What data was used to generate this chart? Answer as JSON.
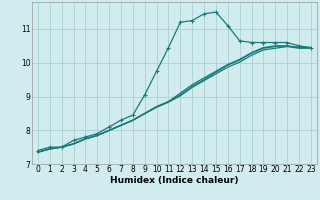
{
  "xlabel": "Humidex (Indice chaleur)",
  "ylabel": "",
  "bg_color": "#d0ecee",
  "grid_color": "#b0d4d4",
  "line_color": "#1a7a7a",
  "xlim": [
    -0.5,
    23.5
  ],
  "ylim": [
    7,
    11.8
  ],
  "xticks": [
    0,
    1,
    2,
    3,
    4,
    5,
    6,
    7,
    8,
    9,
    10,
    11,
    12,
    13,
    14,
    15,
    16,
    17,
    18,
    19,
    20,
    21,
    22,
    23
  ],
  "yticks": [
    7,
    8,
    9,
    10,
    11
  ],
  "series": [
    {
      "x": [
        0,
        1,
        2,
        3,
        4,
        5,
        6,
        7,
        8,
        9,
        10,
        11,
        12,
        13,
        14,
        15,
        16,
        17,
        18,
        19,
        20,
        21,
        22,
        23
      ],
      "y": [
        7.4,
        7.5,
        7.5,
        7.7,
        7.8,
        7.9,
        8.1,
        8.3,
        8.45,
        9.05,
        9.75,
        10.45,
        11.2,
        11.25,
        11.45,
        11.5,
        11.1,
        10.65,
        10.6,
        10.6,
        10.6,
        10.6,
        10.5,
        10.45
      ],
      "marker": "+"
    },
    {
      "x": [
        0,
        1,
        2,
        3,
        4,
        5,
        6,
        7,
        8,
        9,
        10,
        11,
        12,
        13,
        14,
        15,
        16,
        17,
        18,
        19,
        20,
        21,
        22,
        23
      ],
      "y": [
        7.35,
        7.45,
        7.5,
        7.6,
        7.75,
        7.85,
        8.0,
        8.15,
        8.3,
        8.5,
        8.7,
        8.85,
        9.1,
        9.35,
        9.55,
        9.75,
        9.95,
        10.1,
        10.3,
        10.45,
        10.5,
        10.5,
        10.45,
        10.45
      ],
      "marker": null
    },
    {
      "x": [
        0,
        1,
        2,
        3,
        4,
        5,
        6,
        7,
        8,
        9,
        10,
        11,
        12,
        13,
        14,
        15,
        16,
        17,
        18,
        19,
        20,
        21,
        22,
        23
      ],
      "y": [
        7.35,
        7.45,
        7.5,
        7.6,
        7.75,
        7.85,
        8.0,
        8.15,
        8.3,
        8.5,
        8.7,
        8.85,
        9.05,
        9.3,
        9.5,
        9.72,
        9.93,
        10.08,
        10.28,
        10.43,
        10.48,
        10.5,
        10.45,
        10.45
      ],
      "marker": null
    },
    {
      "x": [
        0,
        1,
        2,
        3,
        4,
        5,
        6,
        7,
        8,
        9,
        10,
        11,
        12,
        13,
        14,
        15,
        16,
        17,
        18,
        19,
        20,
        21,
        22,
        23
      ],
      "y": [
        7.35,
        7.44,
        7.5,
        7.59,
        7.74,
        7.84,
        7.99,
        8.14,
        8.29,
        8.49,
        8.68,
        8.83,
        9.02,
        9.27,
        9.47,
        9.67,
        9.87,
        10.02,
        10.22,
        10.38,
        10.43,
        10.48,
        10.43,
        10.43
      ],
      "marker": null
    }
  ]
}
